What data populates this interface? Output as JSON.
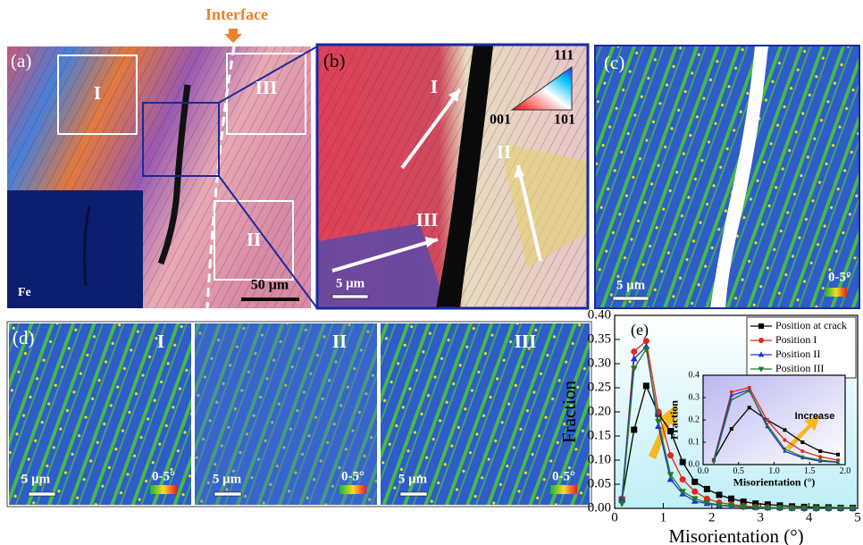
{
  "figure": {
    "interface_label": "Interface",
    "panel_a": {
      "label": "(a)",
      "regions": [
        "I",
        "III",
        "II"
      ],
      "inset_label": "Fe",
      "scale_bar": "50 μm"
    },
    "panel_b": {
      "label": "(b)",
      "regions": [
        "I",
        "II",
        "III"
      ],
      "ipf_key": [
        "111",
        "001",
        "101"
      ],
      "scale_bar": "5 μm"
    },
    "panel_c": {
      "label": "(c)",
      "scale_bar": "5 μm",
      "color_key": "0-5°"
    },
    "panel_d": {
      "label": "(d)",
      "subpanels": [
        {
          "label": "I",
          "scale_bar": "5 μm",
          "color_key": "0-5°"
        },
        {
          "label": "II",
          "scale_bar": "5 μm",
          "color_key": "0-5°"
        },
        {
          "label": "III",
          "scale_bar": "5 μm",
          "color_key": "0-5°"
        }
      ]
    },
    "panel_e": {
      "label": "(e)",
      "inset_annotation": "Increase"
    }
  },
  "chart_data": [
    {
      "type": "line",
      "xlabel": "Misorientation (°)",
      "ylabel": "Fraction",
      "x": [
        0.15,
        0.4,
        0.65,
        0.9,
        1.15,
        1.4,
        1.65,
        1.9,
        2.15,
        2.4,
        2.65,
        2.9,
        3.15,
        3.4,
        3.65,
        3.9,
        4.15,
        4.4,
        4.65,
        4.9
      ],
      "series": [
        {
          "name": "Position at crack",
          "color": "#000000",
          "marker": "square",
          "values": [
            0.018,
            0.163,
            0.254,
            0.196,
            0.16,
            0.096,
            0.055,
            0.04,
            0.028,
            0.02,
            0.014,
            0.01,
            0.008,
            0.006,
            0.004,
            0.003,
            0.002,
            0.002,
            0.001,
            0.001
          ]
        },
        {
          "name": "Position I",
          "color": "#e8231f",
          "marker": "circle",
          "values": [
            0.02,
            0.325,
            0.347,
            0.2,
            0.11,
            0.06,
            0.035,
            0.02,
            0.012,
            0.008,
            0.005,
            0.003,
            0.002,
            0.001,
            0.001,
            0,
            0,
            0,
            0,
            0
          ]
        },
        {
          "name": "Position II",
          "color": "#1f2fd8",
          "marker": "triangle-up",
          "values": [
            0.02,
            0.31,
            0.335,
            0.17,
            0.06,
            0.03,
            0.015,
            0.01,
            0.006,
            0.004,
            0.003,
            0.002,
            0.001,
            0.001,
            0,
            0,
            0,
            0,
            0,
            0
          ]
        },
        {
          "name": "Position III",
          "color": "#1f7a25",
          "marker": "triangle-down",
          "values": [
            0.01,
            0.29,
            0.33,
            0.18,
            0.07,
            0.035,
            0.02,
            0.012,
            0.007,
            0.005,
            0.003,
            0.002,
            0.001,
            0.001,
            0,
            0,
            0,
            0,
            0,
            0
          ]
        }
      ],
      "xlim": [
        0,
        5
      ],
      "xticks": [
        0,
        1,
        2,
        3,
        4,
        5
      ],
      "ylim": [
        0,
        0.4
      ],
      "yticks": [
        {
          "value": 0,
          "label": "0.00"
        },
        0.05,
        {
          "value": 0.1,
          "label": "0.10"
        },
        0.15,
        {
          "value": 0.2,
          "label": "0.20"
        },
        0.25,
        {
          "value": 0.3,
          "label": "0.30"
        },
        0.35,
        {
          "value": 0.4,
          "label": "0.40"
        }
      ],
      "legend": "upper right"
    },
    {
      "type": "line",
      "xlabel": "Misorientation (°)",
      "ylabel": "Fraction",
      "x": [
        0.15,
        0.4,
        0.65,
        0.9,
        1.15,
        1.4,
        1.65,
        1.9
      ],
      "series": [
        {
          "color": "#000000",
          "marker": "square",
          "values": [
            0.02,
            0.16,
            0.255,
            0.2,
            0.155,
            0.1,
            0.06,
            0.045
          ]
        },
        {
          "color": "#e8231f",
          "marker": "circle",
          "values": [
            0.02,
            0.325,
            0.345,
            0.2,
            0.11,
            0.06,
            0.035,
            0.02
          ]
        },
        {
          "color": "#1f2fd8",
          "marker": "triangle-up",
          "values": [
            0.02,
            0.31,
            0.335,
            0.17,
            0.06,
            0.03,
            0.015,
            0.01
          ]
        },
        {
          "color": "#1f7a25",
          "marker": "triangle-down",
          "values": [
            0.01,
            0.29,
            0.33,
            0.18,
            0.07,
            0.035,
            0.02,
            0.012
          ]
        }
      ],
      "xlim": [
        0,
        2
      ],
      "xticks": [
        {
          "value": 0,
          "label": "0.0"
        },
        0.5,
        {
          "value": 1,
          "label": "1.0"
        },
        1.5,
        {
          "value": 2,
          "label": "2.0"
        }
      ],
      "ylim": [
        0,
        0.4
      ],
      "yticks": [
        {
          "value": 0,
          "label": "0.0"
        },
        0.1,
        0.2,
        0.3,
        0.4
      ]
    }
  ]
}
